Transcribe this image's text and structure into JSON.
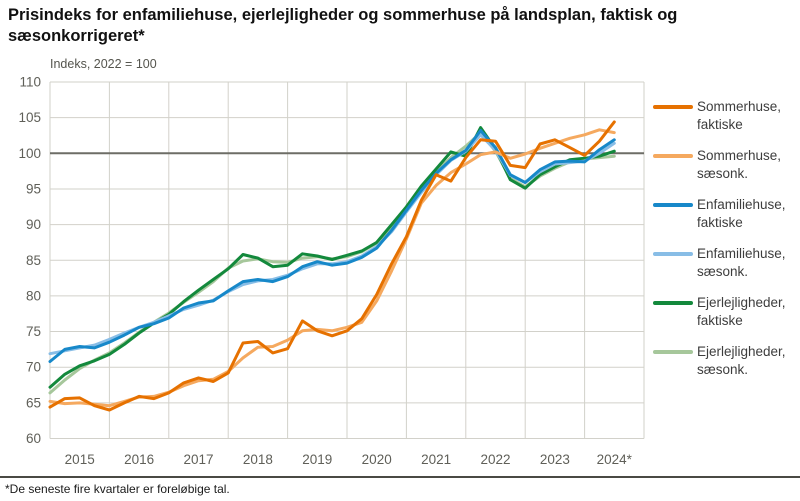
{
  "title": "Prisindeks for enfamiliehuse, ejerlejligheder og sommerhuse på landsplan, faktisk og sæsonkorrigeret*",
  "subtitle": "Indeks, 2022 = 100",
  "footnote": "*De seneste fire kvartaler er foreløbige tal.",
  "colors": {
    "grid": "#d2d1ca",
    "reference_line": "#6d6d66",
    "tick_text": "#5f5f58",
    "title_text": "#111111",
    "legend_text": "#3d3d3d"
  },
  "chart_data": {
    "type": "line",
    "title": "Prisindeks for enfamiliehuse, ejerlejligheder og sommerhuse på landsplan, faktisk og sæsonkorrigeret*",
    "subtitle": "Indeks, 2022 = 100",
    "x_unit": "quarter",
    "x_start": "2015-Q1",
    "x_end": "2024-Q3",
    "points_per_year": 4,
    "year_labels": [
      "2015",
      "2016",
      "2017",
      "2018",
      "2019",
      "2020",
      "2021",
      "2022",
      "2023",
      "2024*"
    ],
    "ylim": [
      60,
      110
    ],
    "yticks": [
      60,
      65,
      70,
      75,
      80,
      85,
      90,
      95,
      100,
      105,
      110
    ],
    "reference_line": 100,
    "grid": true,
    "legend_position": "right",
    "series": [
      {
        "name": "Sommerhuse, faktiske",
        "color": "#E67100",
        "values": [
          64.4,
          65.6,
          65.7,
          64.6,
          64.0,
          65.0,
          65.9,
          65.6,
          66.4,
          67.8,
          68.5,
          68.0,
          69.2,
          73.4,
          73.6,
          72.0,
          72.6,
          76.5,
          75.1,
          74.4,
          75.1,
          76.8,
          80.2,
          84.5,
          88.3,
          93.4,
          97.0,
          96.1,
          99.4,
          101.9,
          101.7,
          98.3,
          98.0,
          101.3,
          101.9,
          100.8,
          99.7,
          101.7,
          104.4
        ]
      },
      {
        "name": "Sommerhuse, sæsonk.",
        "color": "#F5A95F",
        "values": [
          65.2,
          64.9,
          65.0,
          64.8,
          64.6,
          65.2,
          65.8,
          65.9,
          66.5,
          67.4,
          68.1,
          68.3,
          69.4,
          71.3,
          72.8,
          72.9,
          73.8,
          75.1,
          75.3,
          75.1,
          75.6,
          76.3,
          79.3,
          83.5,
          88.0,
          93.0,
          95.5,
          97.3,
          98.5,
          99.8,
          100.2,
          99.3,
          99.9,
          100.7,
          101.4,
          102.1,
          102.6,
          103.3,
          102.9
        ]
      },
      {
        "name": "Enfamiliehuse, faktiske",
        "color": "#1788C9",
        "values": [
          70.8,
          72.5,
          72.9,
          72.7,
          73.5,
          74.5,
          75.6,
          76.1,
          76.9,
          78.3,
          79.0,
          79.3,
          80.7,
          82.0,
          82.3,
          82.0,
          82.7,
          84.1,
          84.8,
          84.3,
          84.6,
          85.4,
          86.7,
          89.2,
          92.0,
          94.8,
          97.2,
          99.1,
          100.4,
          103.2,
          100.8,
          97.0,
          95.9,
          97.7,
          98.8,
          98.9,
          98.8,
          100.5,
          101.9
        ]
      },
      {
        "name": "Enfamiliehuse, sæsonk.",
        "color": "#88BDE6",
        "values": [
          71.9,
          72.3,
          72.7,
          73.1,
          73.9,
          74.8,
          75.6,
          76.3,
          77.2,
          78.1,
          78.7,
          79.4,
          80.6,
          81.6,
          82.1,
          82.3,
          82.9,
          83.8,
          84.5,
          84.5,
          84.8,
          85.6,
          86.9,
          89.0,
          91.8,
          94.5,
          97.0,
          99.0,
          100.3,
          102.6,
          100.4,
          96.9,
          95.9,
          97.4,
          98.5,
          98.7,
          98.9,
          100.0,
          101.4
        ]
      },
      {
        "name": "Ejerlejligheder, faktiske",
        "color": "#13893C",
        "values": [
          67.2,
          69.0,
          70.2,
          70.9,
          71.8,
          73.2,
          74.8,
          76.2,
          77.4,
          79.2,
          80.8,
          82.3,
          83.8,
          85.8,
          85.3,
          84.1,
          84.3,
          85.9,
          85.6,
          85.1,
          85.7,
          86.3,
          87.5,
          90.0,
          92.5,
          95.4,
          97.8,
          100.2,
          99.6,
          103.6,
          100.6,
          96.3,
          95.1,
          97.0,
          98.1,
          99.1,
          99.3,
          99.6,
          100.3
        ]
      },
      {
        "name": "Ejerlejligheder, sæsonk.",
        "color": "#A6C79B",
        "values": [
          66.4,
          68.2,
          69.8,
          71.0,
          72.0,
          73.4,
          74.9,
          76.3,
          77.6,
          79.1,
          80.5,
          82.0,
          83.9,
          84.9,
          85.2,
          84.8,
          84.7,
          85.3,
          85.5,
          85.2,
          85.5,
          86.2,
          87.4,
          89.6,
          92.2,
          95.0,
          97.4,
          99.4,
          101.0,
          102.9,
          100.3,
          96.5,
          95.3,
          96.8,
          97.9,
          98.8,
          99.2,
          99.4,
          99.6
        ]
      }
    ]
  }
}
